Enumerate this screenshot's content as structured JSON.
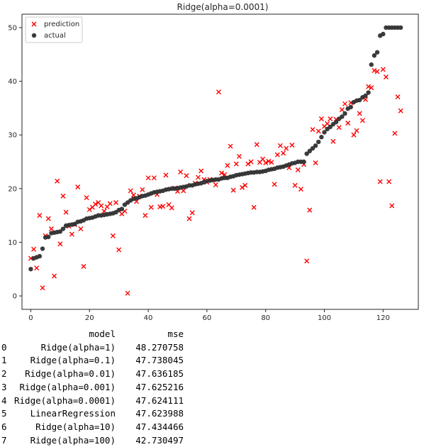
{
  "chart_data": {
    "type": "scatter",
    "title": "Ridge(alpha=0.0001)",
    "xlim": [
      -3,
      132
    ],
    "ylim": [
      -2.5,
      52.5
    ],
    "xticks": [
      0,
      20,
      40,
      60,
      80,
      100,
      120
    ],
    "yticks": [
      0,
      10,
      20,
      30,
      40,
      50
    ],
    "grid": false,
    "legend_position": "top-left",
    "series": [
      {
        "name": "prediction",
        "marker": "x",
        "color": "#ff0000",
        "x": [
          0,
          1,
          2,
          3,
          4,
          5,
          6,
          7,
          8,
          9,
          10,
          11,
          12,
          13,
          14,
          15,
          16,
          17,
          18,
          19,
          20,
          21,
          22,
          23,
          24,
          25,
          26,
          27,
          28,
          29,
          30,
          31,
          32,
          33,
          34,
          35,
          36,
          37,
          38,
          39,
          40,
          41,
          42,
          43,
          44,
          45,
          46,
          47,
          48,
          49,
          50,
          51,
          52,
          53,
          54,
          55,
          56,
          57,
          58,
          59,
          60,
          61,
          62,
          63,
          64,
          65,
          66,
          67,
          68,
          69,
          70,
          71,
          72,
          73,
          74,
          75,
          76,
          77,
          78,
          79,
          80,
          81,
          82,
          83,
          84,
          85,
          86,
          87,
          88,
          89,
          90,
          91,
          92,
          93,
          94,
          95,
          96,
          97,
          98,
          99,
          100,
          101,
          102,
          103,
          104,
          105,
          106,
          107,
          108,
          109,
          110,
          111,
          112,
          113,
          114,
          115,
          116,
          117,
          118,
          119,
          120,
          121,
          122,
          123,
          124,
          125,
          126
        ],
        "y": [
          7.0,
          8.7,
          5.2,
          15.0,
          1.5,
          11.2,
          14.4,
          12.5,
          3.7,
          21.4,
          9.7,
          18.6,
          15.6,
          13.0,
          11.5,
          13.3,
          20.3,
          12.5,
          5.5,
          18.3,
          16.1,
          16.5,
          17.1,
          17.4,
          16.8,
          15.8,
          16.6,
          17.2,
          11.2,
          17.4,
          8.6,
          15.3,
          15.8,
          0.5,
          19.6,
          18.8,
          17.6,
          18.6,
          19.8,
          15.0,
          22.0,
          16.5,
          22.0,
          18.9,
          16.6,
          16.7,
          22.5,
          17.0,
          16.4,
          20.1,
          19.5,
          23.1,
          19.6,
          22.4,
          14.4,
          15.5,
          21.0,
          22.1,
          23.3,
          21.7,
          21.2,
          21.7,
          21.6,
          20.7,
          38.0,
          22.9,
          22.6,
          24.3,
          27.9,
          19.7,
          24.6,
          26.0,
          20.2,
          20.6,
          24.6,
          25.0,
          16.5,
          28.2,
          24.9,
          25.5,
          24.8,
          25.1,
          24.9,
          20.8,
          26.3,
          28.0,
          26.6,
          27.5,
          23.9,
          28.1,
          20.6,
          23.5,
          19.9,
          24.5,
          6.5,
          16.0,
          31.0,
          24.8,
          30.7,
          33.0,
          31.6,
          32.1,
          33.0,
          28.8,
          32.9,
          31.4,
          34.7,
          35.8,
          32.2,
          36.0,
          30.0,
          30.8,
          34.0,
          32.7,
          36.6,
          39.0,
          38.8,
          42.0,
          41.8,
          21.3,
          42.2,
          40.8,
          21.3,
          16.8,
          30.3,
          37.1,
          34.5
        ]
      },
      {
        "name": "actual",
        "marker": "o",
        "color": "#303030",
        "x": [
          0,
          1,
          2,
          3,
          4,
          5,
          6,
          7,
          8,
          9,
          10,
          11,
          12,
          13,
          14,
          15,
          16,
          17,
          18,
          19,
          20,
          21,
          22,
          23,
          24,
          25,
          26,
          27,
          28,
          29,
          30,
          31,
          32,
          33,
          34,
          35,
          36,
          37,
          38,
          39,
          40,
          41,
          42,
          43,
          44,
          45,
          46,
          47,
          48,
          49,
          50,
          51,
          52,
          53,
          54,
          55,
          56,
          57,
          58,
          59,
          60,
          61,
          62,
          63,
          64,
          65,
          66,
          67,
          68,
          69,
          70,
          71,
          72,
          73,
          74,
          75,
          76,
          77,
          78,
          79,
          80,
          81,
          82,
          83,
          84,
          85,
          86,
          87,
          88,
          89,
          90,
          91,
          92,
          93,
          94,
          95,
          96,
          97,
          98,
          99,
          100,
          101,
          102,
          103,
          104,
          105,
          106,
          107,
          108,
          109,
          110,
          111,
          112,
          113,
          114,
          115,
          116,
          117,
          118,
          119,
          120,
          121,
          122,
          123,
          124,
          125,
          126
        ],
        "y": [
          5.0,
          7.0,
          7.2,
          7.4,
          8.8,
          10.9,
          11.0,
          11.7,
          11.8,
          11.9,
          12.0,
          12.5,
          13.1,
          13.2,
          13.3,
          13.4,
          13.8,
          13.9,
          14.1,
          14.4,
          14.5,
          14.6,
          14.8,
          15.0,
          15.0,
          15.1,
          15.2,
          15.3,
          15.4,
          15.6,
          16.0,
          16.2,
          17.0,
          17.4,
          17.8,
          18.1,
          18.2,
          18.4,
          18.6,
          18.7,
          18.9,
          19.1,
          19.3,
          19.4,
          19.5,
          19.6,
          19.8,
          19.9,
          20.0,
          20.0,
          20.1,
          20.2,
          20.3,
          20.4,
          20.6,
          20.6,
          20.8,
          20.9,
          21.0,
          21.2,
          21.4,
          21.5,
          21.6,
          21.7,
          21.7,
          21.9,
          22.0,
          22.0,
          22.2,
          22.3,
          22.5,
          22.6,
          22.7,
          22.8,
          22.9,
          23.0,
          23.0,
          23.1,
          23.1,
          23.2,
          23.3,
          23.5,
          23.6,
          23.7,
          23.9,
          24.0,
          24.1,
          24.3,
          24.5,
          24.7,
          24.8,
          25.0,
          25.0,
          25.0,
          26.5,
          27.0,
          27.5,
          28.0,
          28.7,
          29.6,
          30.5,
          31.1,
          31.5,
          32.0,
          32.4,
          33.0,
          33.4,
          34.0,
          34.9,
          35.2,
          36.1,
          36.4,
          36.5,
          37.0,
          37.3,
          37.9,
          43.1,
          44.8,
          45.4,
          48.5,
          48.8,
          50.0,
          50.0,
          50.0,
          50.0,
          50.0,
          50.0
        ]
      }
    ]
  },
  "table": {
    "headers": [
      "",
      "model",
      "mse"
    ],
    "rows": [
      {
        "index": "0",
        "model": "Ridge(alpha=1)",
        "mse": "48.270758"
      },
      {
        "index": "1",
        "model": "Ridge(alpha=0.1)",
        "mse": "47.738045"
      },
      {
        "index": "2",
        "model": "Ridge(alpha=0.01)",
        "mse": "47.636185"
      },
      {
        "index": "3",
        "model": "Ridge(alpha=0.001)",
        "mse": "47.625216"
      },
      {
        "index": "4",
        "model": "Ridge(alpha=0.0001)",
        "mse": "47.624111"
      },
      {
        "index": "5",
        "model": "LinearRegression",
        "mse": "47.623988"
      },
      {
        "index": "6",
        "model": "Ridge(alpha=10)",
        "mse": "47.434466"
      },
      {
        "index": "7",
        "model": "Ridge(alpha=100)",
        "mse": "42.730497"
      }
    ]
  }
}
